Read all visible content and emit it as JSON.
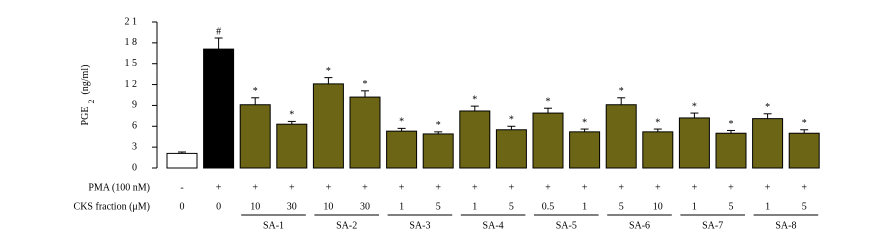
{
  "chart_data": {
    "type": "bar",
    "ylabel": "PGE",
    "ylabel_sub": "2",
    "ylabel_unit": "(ng/ml)",
    "ylim": [
      0,
      21
    ],
    "yticks": [
      0,
      3,
      6,
      9,
      {
        "value": 12,
        "label": "1 2"
      },
      {
        "value": 15,
        "label": "1 5"
      },
      {
        "value": 18,
        "label": "1 8"
      },
      {
        "value": 21,
        "label": "2 1"
      }
    ],
    "series": [
      {
        "values": [
          2.1,
          17.1,
          9.1,
          6.3,
          12.1,
          10.2,
          5.3,
          4.9,
          8.2,
          5.5,
          7.9,
          5.2,
          9.1,
          5.2,
          7.2,
          5.0,
          7.1,
          5.0
        ],
        "errors": [
          0.2,
          1.6,
          1.0,
          0.4,
          0.9,
          0.9,
          0.4,
          0.3,
          0.7,
          0.5,
          0.7,
          0.4,
          1.0,
          0.4,
          0.7,
          0.4,
          0.7,
          0.5
        ],
        "colors": [
          "#ffffff",
          "#000000",
          "#6b6515",
          "#6b6515",
          "#6b6515",
          "#6b6515",
          "#6b6515",
          "#6b6515",
          "#6b6515",
          "#6b6515",
          "#6b6515",
          "#6b6515",
          "#6b6515",
          "#6b6515",
          "#6b6515",
          "#6b6515",
          "#6b6515",
          "#6b6515"
        ],
        "annotations": [
          null,
          "#",
          "*",
          "*",
          "*",
          "*",
          "*",
          "*",
          "*",
          "*",
          "*",
          "*",
          "*",
          "*",
          "*",
          "*",
          "*",
          "*"
        ]
      }
    ],
    "table": {
      "rows": [
        {
          "label": "PMA (100 nM)",
          "cells": [
            "-",
            "+",
            "+",
            "+",
            "+",
            "+",
            "+",
            "+",
            "+",
            "+",
            "+",
            "+",
            "+",
            "+",
            "+",
            "+",
            "+",
            "+"
          ]
        },
        {
          "label": "CKS fraction (μM)",
          "cells": [
            "0",
            "0",
            "10",
            "30",
            "10",
            "30",
            "1",
            "5",
            "1",
            "5",
            "0.5",
            "1",
            "5",
            "10",
            "1",
            "5",
            "1",
            "5"
          ]
        }
      ],
      "groups": [
        "SA-1",
        "SA-2",
        "SA-3",
        "SA-4",
        "SA-5",
        "SA-6",
        "SA-7",
        "SA-8"
      ]
    }
  }
}
